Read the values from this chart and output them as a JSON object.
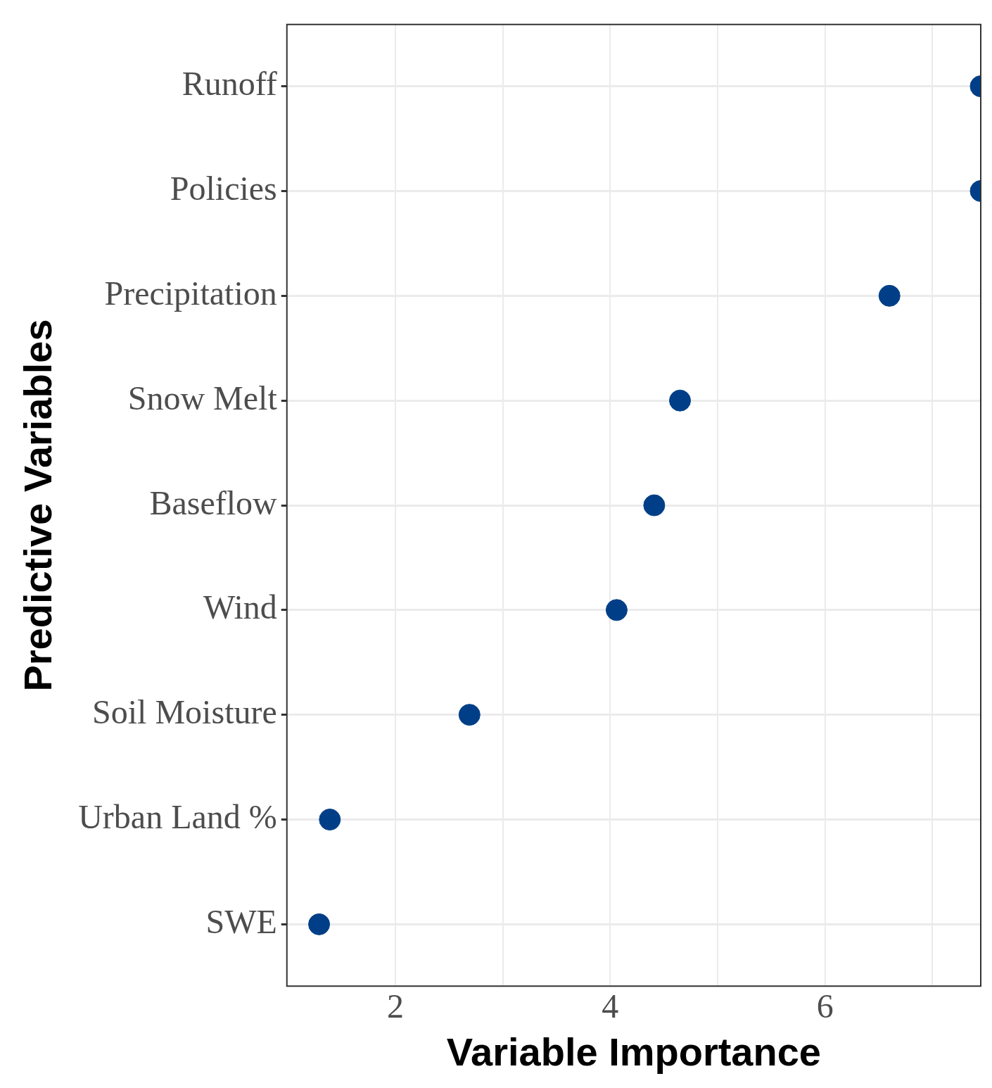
{
  "chart_data": {
    "type": "scatter",
    "orientation": "horizontal",
    "xlabel": "Variable Importance",
    "ylabel": "Predictive Variables",
    "categories": [
      "Runoff",
      "Policies",
      "Precipitation",
      "Snow Melt",
      "Baseflow",
      "Wind",
      "Soil Moisture",
      "Urban Land %",
      "SWE"
    ],
    "values": [
      7.45,
      7.45,
      6.6,
      4.65,
      4.41,
      4.06,
      2.69,
      1.39,
      1.29
    ],
    "color": "#003f87",
    "marker": "circle",
    "grid": true,
    "xlim": [
      0.99,
      7.45
    ],
    "xticks": [
      2,
      {
        "value": 3,
        "label": null
      },
      4,
      {
        "value": 5,
        "label": null
      },
      6,
      {
        "value": 7,
        "label": null
      }
    ]
  }
}
